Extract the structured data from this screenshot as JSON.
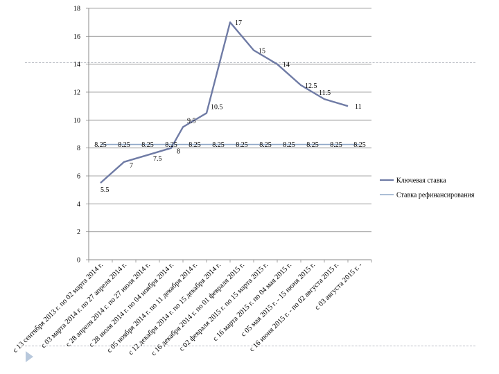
{
  "chart_data": {
    "type": "line",
    "title": "",
    "xlabel": "",
    "ylabel": "",
    "ylim": [
      0,
      18
    ],
    "yticks": [
      0,
      2,
      4,
      6,
      8,
      10,
      12,
      14,
      16,
      18
    ],
    "grid": true,
    "legend_position": "right",
    "categories": [
      "с 13 сентября 2013 г. по 02 марта 2014 г.",
      "с 03 марта 2014 г. по 27 апреля 2014 г.",
      "с 28 апреля 2014 г. по 27 июля 2014 г.",
      "с 28 июля 2014 г. по 04 ноября 2014 г.",
      "с 05 ноября 2014 г. по 11 декабря 2014 г.",
      "с 12 декабря 2014 г. по 15 декабря 2014 г.",
      "с 16 декабря 2014 г. по 01 февраля 2015 г.",
      "с 02 февраля 2015 г. по 15 марта 2015 г.",
      "с 16 марта 2015 г. по 04 мая 2015 г.",
      "с 05 мая 2015 г. - 15 июня 2015 г.",
      "с 16 июня 2015 г. - по 02 августа 2015 г.",
      "с 03 августа 2015 г. -"
    ],
    "series": [
      {
        "name": "Ключевая ставка",
        "color": "#6f7ba5",
        "points": [
          {
            "x": 0,
            "y": 5.5,
            "label": "5.5"
          },
          {
            "x": 1,
            "y": 7,
            "label": "7"
          },
          {
            "x": 2,
            "y": 7.5,
            "label": "7.5"
          },
          {
            "x": 3,
            "y": 8,
            "label": "8"
          },
          {
            "x": 3.5,
            "y": 9.5,
            "label": "9.5"
          },
          {
            "x": 4.5,
            "y": 10.5,
            "label": "10.5"
          },
          {
            "x": 5.5,
            "y": 17,
            "label": "17"
          },
          {
            "x": 6.5,
            "y": 15,
            "label": "15"
          },
          {
            "x": 7.5,
            "y": 14,
            "label": "14"
          },
          {
            "x": 8.5,
            "y": 12.5,
            "label": "12.5"
          },
          {
            "x": 9.5,
            "y": 11.5,
            "label": "11.5"
          },
          {
            "x": 10.5,
            "y": 11,
            "label": "11"
          }
        ]
      },
      {
        "name": "Ставка рефинансирования",
        "color": "#8fa8c8",
        "points": [
          {
            "x": 0,
            "y": 8.25,
            "label": "8.25"
          },
          {
            "x": 1,
            "y": 8.25,
            "label": "8.25"
          },
          {
            "x": 2,
            "y": 8.25,
            "label": "8.25"
          },
          {
            "x": 3,
            "y": 8.25,
            "label": "8.25"
          },
          {
            "x": 4,
            "y": 8.25,
            "label": "8.25"
          },
          {
            "x": 5,
            "y": 8.25,
            "label": "8.25"
          },
          {
            "x": 6,
            "y": 8.25,
            "label": "8.25"
          },
          {
            "x": 7,
            "y": 8.25,
            "label": "8.25"
          },
          {
            "x": 8,
            "y": 8.25,
            "label": "8.25"
          },
          {
            "x": 9,
            "y": 8.25,
            "label": "8.25"
          },
          {
            "x": 10,
            "y": 8.25,
            "label": "8.25"
          },
          {
            "x": 11,
            "y": 8.25,
            "label": "8.25"
          }
        ]
      }
    ]
  }
}
